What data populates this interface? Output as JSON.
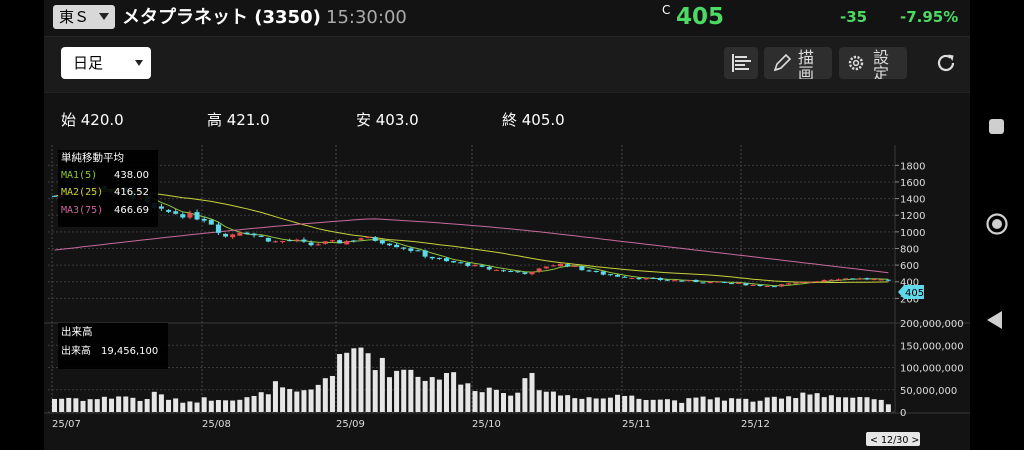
{
  "header": {
    "market": "東Ｓ",
    "stock": "メタプラネット (3350)",
    "time": "15:30:00",
    "price_flag": "C",
    "price": "405",
    "change": "-35",
    "change_pct": "-7.95%",
    "price_color": "#4cd964"
  },
  "toolbar": {
    "period": "日足",
    "draw_label": "描画",
    "settings_label": "設定"
  },
  "ohlc": {
    "open": "始 420.0",
    "high": "高 421.0",
    "low": "安 403.0",
    "close": "終 405.0"
  },
  "price_panel": {
    "title": "単純移動平均",
    "ma1_label": "MA1(5)",
    "ma1_value": "438.00",
    "ma2_label": "MA2(25)",
    "ma2_value": "416.52",
    "ma3_label": "MA3(75)",
    "ma3_value": "466.69",
    "current_tag": "405"
  },
  "volume_panel": {
    "title": "出来高",
    "label": "出来高",
    "value": "19,456,100"
  },
  "date_tag": "< 12/30 >",
  "chart_data": {
    "type": "candlestick",
    "x_ticks": [
      "25/07",
      "25/08",
      "25/09",
      "25/10",
      "25/11",
      "25/12"
    ],
    "price_ticks": [
      200,
      400,
      600,
      800,
      1000,
      1200,
      1400,
      1600,
      1800
    ],
    "price_ylim": [
      0,
      1900
    ],
    "volume_ticks": [
      "0",
      "50,000,000",
      "100,000,000",
      "150,000,000",
      "200,000,000"
    ],
    "volume_ylim": [
      0,
      200000000
    ],
    "colors": {
      "up": "#e05050",
      "down": "#5fd9e8",
      "ma1": "#8cc63f",
      "ma2": "#c8d23a",
      "ma3": "#c8699e",
      "volume": "#e6e6e6"
    },
    "close_path": [
      1430,
      1500,
      1520,
      1540,
      1480,
      1400,
      1250,
      1230,
      1190,
      1150,
      940,
      1020,
      940,
      880,
      900,
      840,
      870,
      880,
      930,
      900,
      840,
      780,
      700,
      640,
      620,
      570,
      540,
      520,
      500,
      600,
      610,
      550,
      500,
      470,
      450,
      430,
      420,
      410,
      400,
      390,
      380,
      360,
      350,
      370,
      390,
      420,
      440,
      440,
      430,
      405
    ],
    "volume_path": [
      30,
      32,
      28,
      31,
      38,
      25,
      42,
      26,
      24,
      30,
      32,
      28,
      35,
      60,
      40,
      45,
      80,
      120,
      150,
      110,
      90,
      100,
      70,
      95,
      60,
      55,
      50,
      45,
      75,
      45,
      38,
      35,
      30,
      35,
      40,
      30,
      28,
      25,
      30,
      32,
      28,
      26,
      28,
      30,
      45,
      42,
      35,
      30,
      28,
      19
    ]
  }
}
